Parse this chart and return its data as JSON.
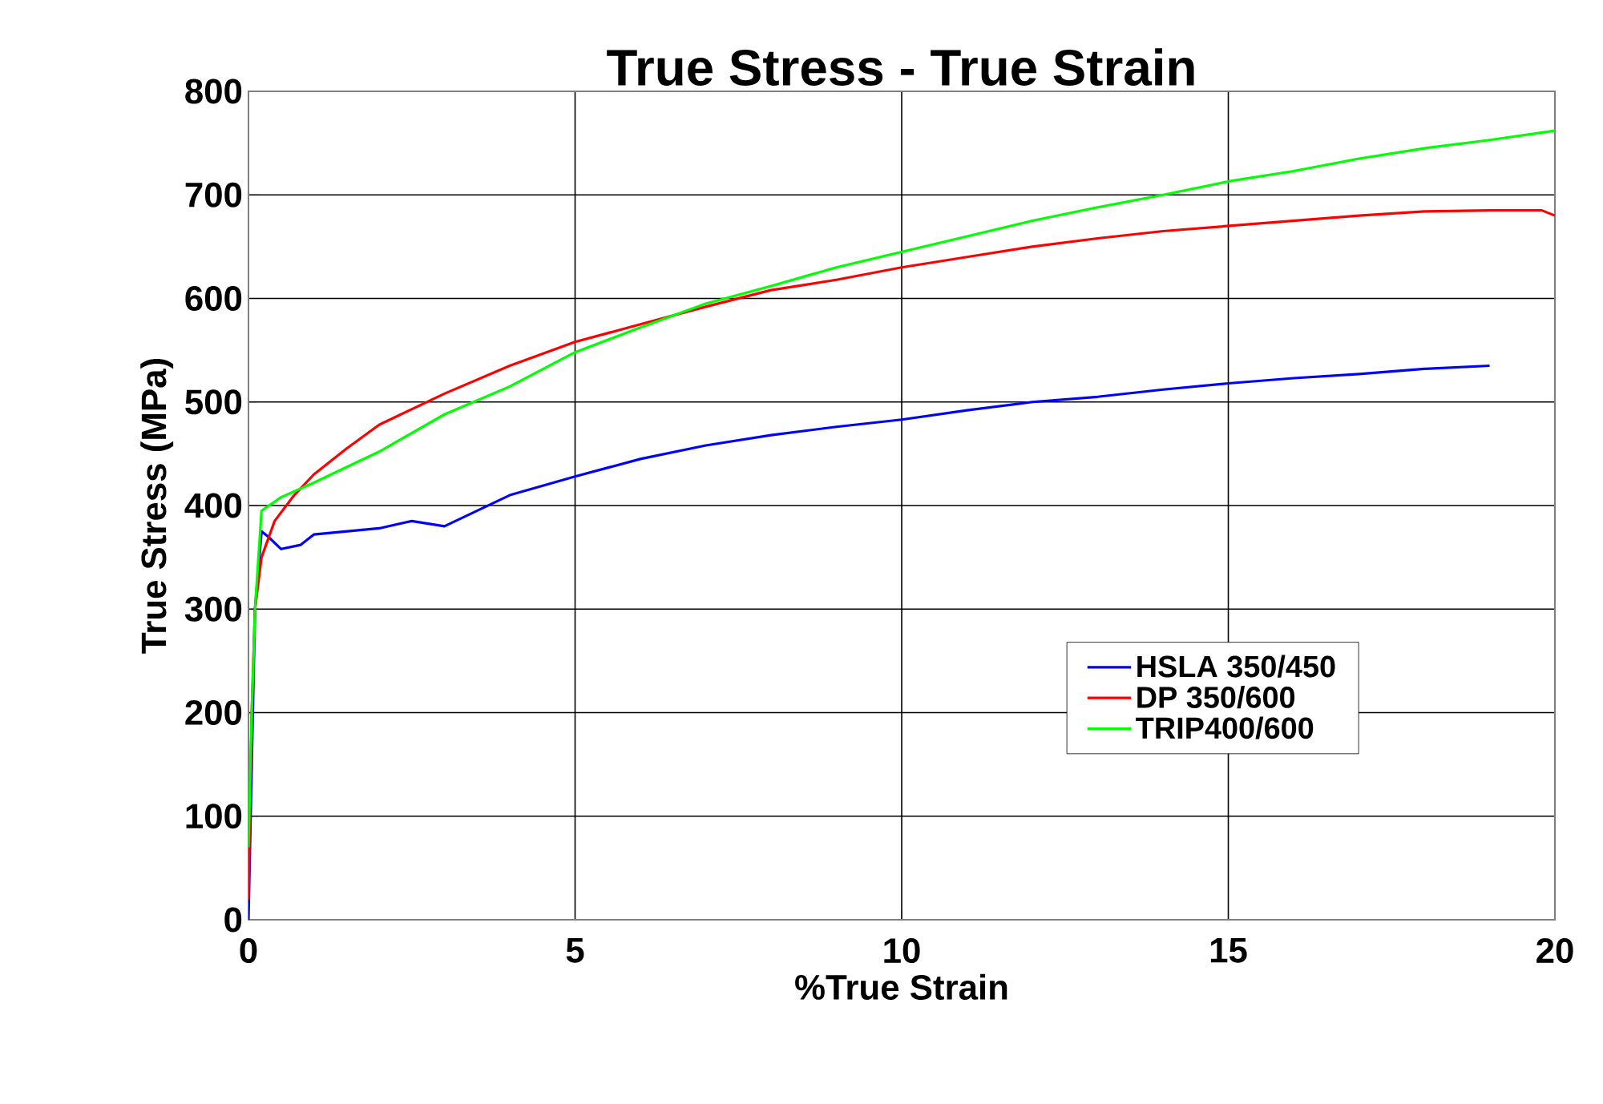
{
  "chart_data": {
    "type": "line",
    "title": "True Stress - True Strain",
    "xlabel": "%True Strain",
    "ylabel": "True Stress (MPa)",
    "xlim": [
      0,
      20
    ],
    "xticks": [
      0,
      5,
      10,
      15,
      20
    ],
    "ylim": [
      0,
      800
    ],
    "yticks": [
      0,
      100,
      200,
      300,
      400,
      500,
      600,
      700,
      800
    ],
    "grid": true,
    "legend": "bottom right",
    "marker": "none",
    "line_style": "solid",
    "series": [
      {
        "name": "HSLA 350/450",
        "color": "#0000ff",
        "x": [
          0,
          0.05,
          0.1,
          0.2,
          0.3,
          0.5,
          0.8,
          1,
          1.5,
          2,
          2.5,
          3,
          3.5,
          4,
          5,
          6,
          7,
          8,
          9,
          10,
          11,
          12,
          13,
          14,
          15,
          16,
          17,
          18,
          19
        ],
        "values": [
          0,
          150,
          300,
          375,
          370,
          358,
          362,
          372,
          375,
          378,
          385,
          380,
          395,
          410,
          428,
          445,
          458,
          468,
          476,
          483,
          492,
          500,
          505,
          512,
          518,
          523,
          527,
          532,
          535
        ]
      },
      {
        "name": "DP 350/600",
        "color": "#ff0000",
        "x": [
          0,
          0.05,
          0.1,
          0.2,
          0.4,
          0.7,
          1,
          1.5,
          2,
          3,
          4,
          5,
          6,
          7,
          8,
          9,
          10,
          11,
          12,
          13,
          14,
          15,
          16,
          17,
          18,
          19,
          19.8,
          20
        ],
        "values": [
          20,
          200,
          300,
          350,
          385,
          410,
          430,
          455,
          478,
          508,
          535,
          558,
          575,
          592,
          608,
          618,
          630,
          640,
          650,
          658,
          665,
          670,
          675,
          680,
          684,
          685,
          685,
          680
        ]
      },
      {
        "name": "TRIP400/600",
        "color": "#00ff00",
        "x": [
          0,
          0.05,
          0.1,
          0.2,
          0.5,
          1,
          2,
          3,
          4,
          5,
          6,
          7,
          8,
          9,
          10,
          11,
          12,
          13,
          14,
          15,
          16,
          17,
          18,
          19,
          20
        ],
        "values": [
          70,
          200,
          300,
          395,
          408,
          422,
          452,
          488,
          515,
          548,
          572,
          595,
          612,
          630,
          645,
          660,
          675,
          688,
          700,
          713,
          723,
          735,
          745,
          753,
          762
        ]
      }
    ]
  }
}
